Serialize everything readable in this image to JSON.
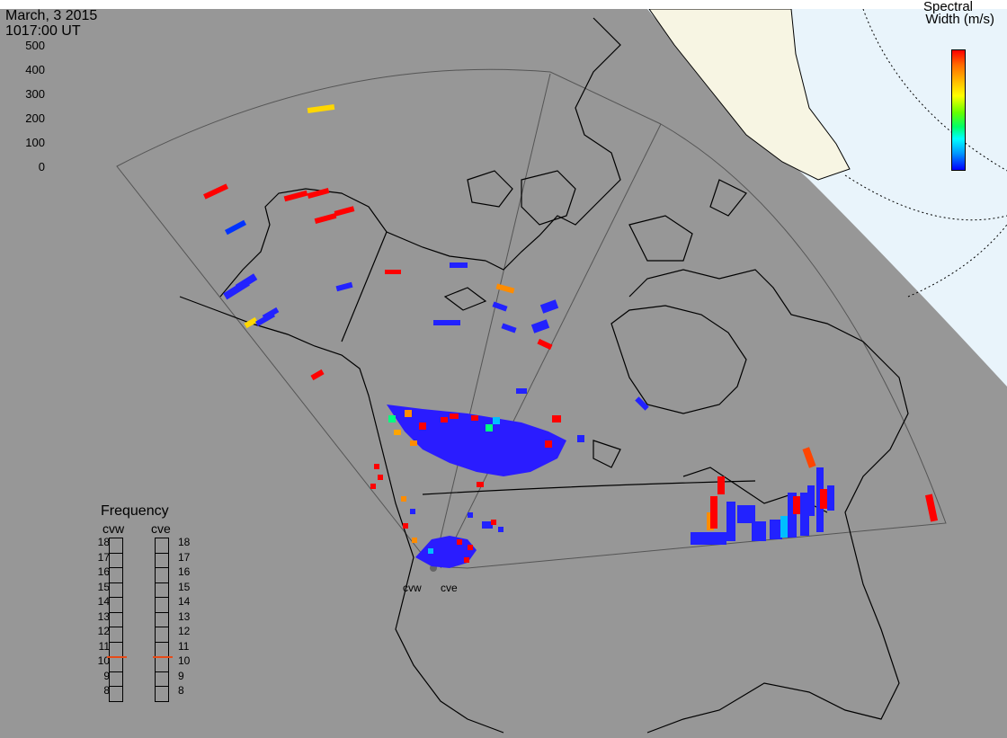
{
  "header": {
    "date": "March, 3 2015",
    "time": "1017:00 UT"
  },
  "colorbar": {
    "title_line1": "Spectral",
    "title_line2": "Width (m/s)",
    "ticks": [
      "500",
      "400",
      "300",
      "200",
      "100",
      "0"
    ],
    "colors": [
      "#ff0000",
      "#ffa500",
      "#ffff00",
      "#00ff00",
      "#00ffff",
      "#0000ff"
    ]
  },
  "frequency": {
    "title": "Frequency",
    "radars": [
      "cvw",
      "cve"
    ],
    "scale": [
      "18",
      "17",
      "16",
      "15",
      "14",
      "13",
      "12",
      "11",
      "10",
      "9",
      "8"
    ],
    "selected_mhz": [
      10.5,
      10.5
    ]
  },
  "radar_labels": [
    "cvw",
    "cve"
  ],
  "colors": {
    "map_background": "#979797",
    "daylight_region": "#f7f5e3",
    "twilight_region": "#e9f4fb",
    "coastline": "#000000",
    "fov_outline": "#555555"
  }
}
